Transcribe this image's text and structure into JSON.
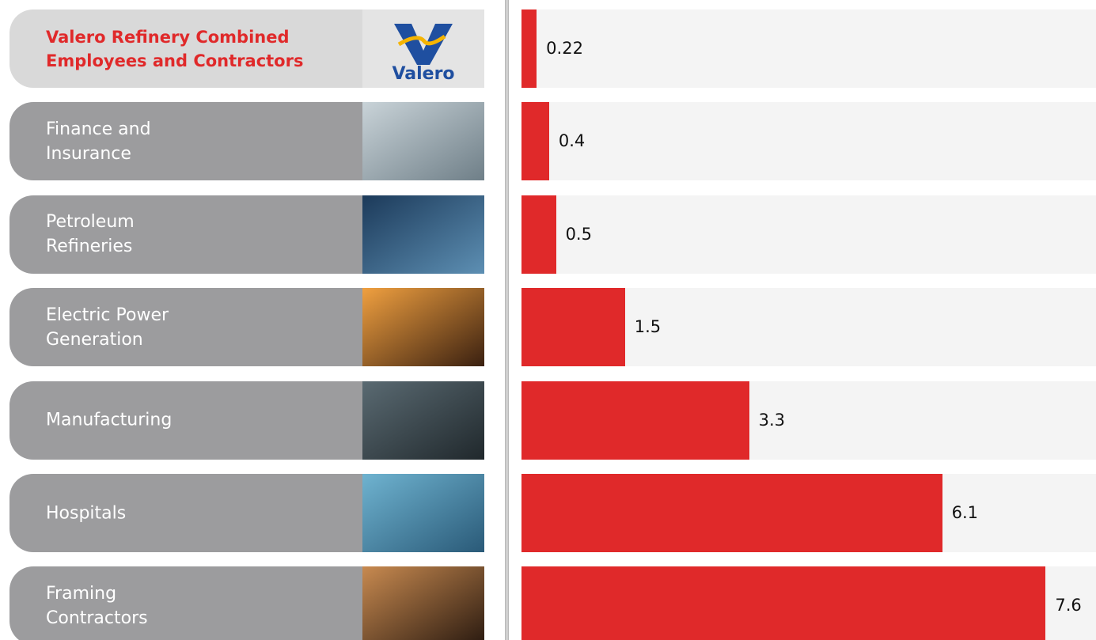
{
  "chart_data": {
    "type": "bar",
    "orientation": "horizontal",
    "categories": [
      "Valero Refinery Combined Employees and Contractors",
      "Finance and Insurance",
      "Petroleum Refineries",
      "Electric Power Generation",
      "Manufacturing",
      "Hospitals",
      "Framing Contractors"
    ],
    "values": [
      0.22,
      0.4,
      0.5,
      1.5,
      3.3,
      6.1,
      7.6
    ],
    "color": "#e0292a",
    "xlim": [
      0,
      8.33
    ],
    "logo_text": "Valero"
  }
}
